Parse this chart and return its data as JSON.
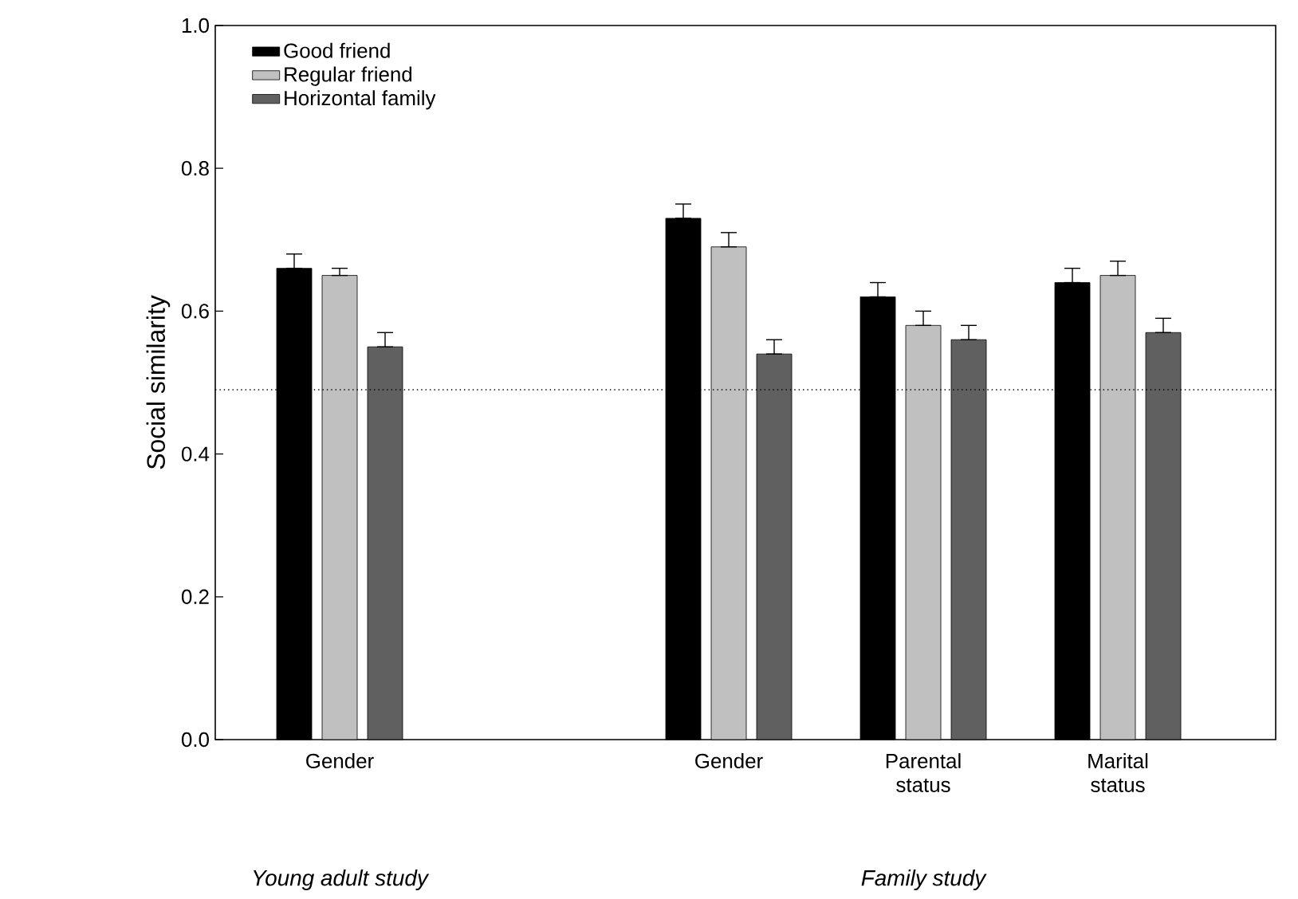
{
  "chart_data": {
    "type": "bar",
    "ylabel": "Social similarity",
    "categories": [
      "Gender",
      null,
      "Gender",
      "Parental status",
      "Marital status"
    ],
    "series": [
      {
        "name": "Good friend",
        "color": "#000000",
        "values": [
          0.66,
          null,
          0.73,
          0.62,
          0.64
        ],
        "errors": [
          [
            0.66,
            0.68
          ],
          null,
          [
            0.73,
            0.75
          ],
          [
            0.62,
            0.64
          ],
          [
            0.64,
            0.66
          ]
        ]
      },
      {
        "name": "Regular friend",
        "color": "#c0c0c0",
        "values": [
          0.65,
          null,
          0.69,
          0.58,
          0.65
        ],
        "errors": [
          [
            0.65,
            0.66
          ],
          null,
          [
            0.69,
            0.71
          ],
          [
            0.58,
            0.6
          ],
          [
            0.65,
            0.67
          ]
        ]
      },
      {
        "name": "Horizontal family",
        "color": "#606060",
        "values": [
          0.55,
          null,
          0.54,
          0.56,
          0.57
        ],
        "errors": [
          [
            0.55,
            0.57
          ],
          null,
          [
            0.54,
            0.56
          ],
          [
            0.56,
            0.58
          ],
          [
            0.57,
            0.59
          ]
        ]
      }
    ],
    "ylim": [
      0,
      1
    ],
    "yticks": [
      {
        "value": 0,
        "label": "0.0"
      },
      {
        "value": 0.2,
        "label": "0.2"
      },
      {
        "value": 0.4,
        "label": "0.4"
      },
      {
        "value": 0.6,
        "label": "0.6"
      },
      {
        "value": 0.8,
        "label": "0.8"
      },
      {
        "value": 1,
        "label": "1.0"
      }
    ],
    "ref_lines": [
      {
        "axis": "y",
        "value": 0.49,
        "line_style": "dotted"
      }
    ],
    "annotations": [
      "Young adult study",
      "Family study"
    ],
    "legend": "top left",
    "grid": false
  }
}
